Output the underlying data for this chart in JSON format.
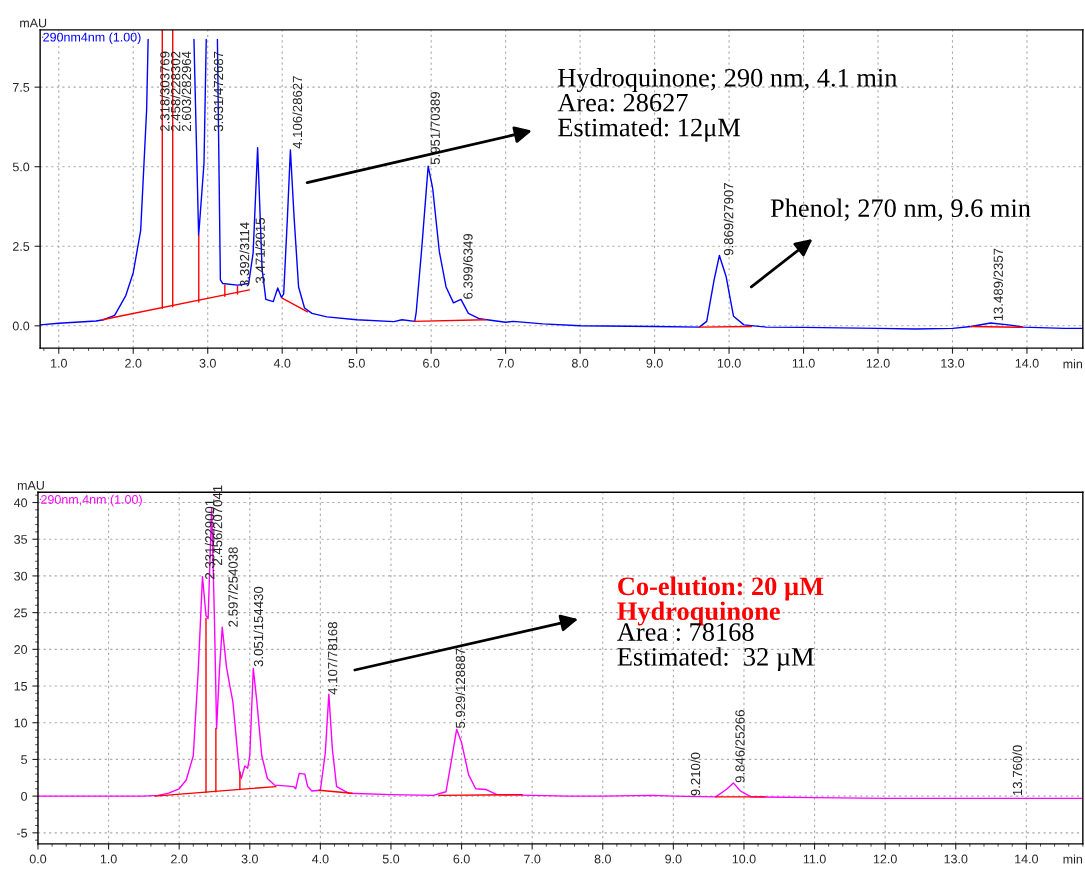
{
  "chart_data": [
    {
      "type": "line",
      "xlabel": "min",
      "ylabel": "mAU",
      "xlim": [
        0.75,
        14.75
      ],
      "ylim": [
        -0.7,
        9.3
      ],
      "xticks": [
        {
          "value": 1,
          "label": "1.0"
        },
        {
          "value": 2,
          "label": "2.0"
        },
        {
          "value": 3,
          "label": "3.0"
        },
        {
          "value": 4,
          "label": "4.0"
        },
        {
          "value": 5,
          "label": "5.0"
        },
        {
          "value": 6,
          "label": "6.0"
        },
        {
          "value": 7,
          "label": "7.0"
        },
        {
          "value": 8,
          "label": "8.0"
        },
        {
          "value": 9,
          "label": "9.0"
        },
        {
          "value": 10,
          "label": "10.0"
        },
        {
          "value": 11,
          "label": "11.0"
        },
        {
          "value": 12,
          "label": "12.0"
        },
        {
          "value": 13,
          "label": "13.0"
        },
        {
          "value": 14,
          "label": "14.0"
        }
      ],
      "yticks": [
        {
          "value": 0,
          "label": "0.0"
        },
        2.5,
        {
          "value": 5,
          "label": "5.0"
        },
        7.5
      ],
      "grid": true,
      "legend": "top left",
      "series": [
        {
          "name": "290nm4nm (1.00)",
          "color": "#0000ff",
          "x": [
            0.75,
            1.0,
            1.5,
            1.6,
            1.75,
            1.9,
            2.0,
            2.1,
            2.18,
            2.2,
            2.5,
            2.815,
            2.878,
            2.95,
            2.98,
            3.05,
            3.13,
            3.17,
            3.2,
            3.4,
            3.55,
            3.61,
            3.67,
            3.73,
            3.78,
            3.88,
            3.94,
            3.99,
            4.02,
            4.07,
            4.11,
            4.16,
            4.22,
            4.3,
            4.4,
            4.6,
            5.0,
            5.5,
            5.61,
            5.78,
            5.8,
            5.87,
            5.96,
            6.02,
            6.11,
            6.2,
            6.3,
            6.4,
            6.5,
            6.65,
            7.0,
            7.1,
            7.5,
            8.0,
            9.0,
            9.6,
            9.7,
            9.8,
            9.87,
            9.96,
            10.06,
            10.2,
            10.5,
            11.0,
            12.0,
            12.5,
            13.0,
            13.25,
            13.51,
            13.75,
            13.95,
            14.5,
            14.75
          ],
          "values": [
            0.03,
            0.08,
            0.15,
            0.19,
            0.33,
            0.95,
            1.67,
            3.0,
            6.8,
            9.0,
            null,
            9.0,
            2.83,
            5.1,
            9.0,
            null,
            9.0,
            1.44,
            1.33,
            1.28,
            1.33,
            2.3,
            5.6,
            1.78,
            0.83,
            0.76,
            1.19,
            0.89,
            1.0,
            3.4,
            5.53,
            3.4,
            1.22,
            0.56,
            0.39,
            0.28,
            0.19,
            0.13,
            0.19,
            0.14,
            0.44,
            2.33,
            5.02,
            4.33,
            2.33,
            1.22,
            0.72,
            0.83,
            0.39,
            0.22,
            0.11,
            0.14,
            0.06,
            0.0,
            -0.02,
            -0.04,
            0.14,
            1.45,
            2.21,
            1.55,
            0.3,
            0.03,
            -0.04,
            -0.05,
            -0.08,
            -0.1,
            -0.08,
            -0.02,
            0.09,
            0.03,
            -0.04,
            -0.08,
            -0.08
          ]
        },
        {
          "color": "#ff0000",
          "x": [
            1.585,
            3.56
          ],
          "values": [
            0.19,
            1.13
          ]
        },
        {
          "color": "#ff0000",
          "x": [
            4.0,
            4.34
          ],
          "values": [
            0.87,
            0.44
          ]
        },
        {
          "color": "#ff0000",
          "x": [
            5.77,
            6.73
          ],
          "values": [
            0.14,
            0.19
          ]
        },
        {
          "color": "#ff0000",
          "x": [
            9.6,
            10.3
          ],
          "values": [
            -0.04,
            -0.02
          ]
        },
        {
          "color": "#ff0000",
          "x": [
            13.25,
            13.95
          ],
          "values": [
            -0.02,
            -0.05
          ]
        },
        {
          "color": "#ff0000",
          "x": [
            2.39,
            2.39
          ],
          "values": [
            0.55,
            9.3
          ]
        },
        {
          "color": "#ff0000",
          "x": [
            2.53,
            2.53
          ],
          "values": [
            0.6,
            9.3
          ]
        },
        {
          "color": "#ff0000",
          "x": [
            2.88,
            2.88
          ],
          "values": [
            0.75,
            2.83
          ]
        },
        {
          "color": "#ff0000",
          "x": [
            3.23,
            3.23
          ],
          "values": [
            0.93,
            1.28
          ]
        },
        {
          "color": "#ff0000",
          "x": [
            3.4,
            3.4
          ],
          "values": [
            1.0,
            1.25
          ]
        }
      ],
      "annotations": [
        "Hydroquinone; 290 nm, 4.1 min\nArea: 28627\nEstimated: 12μM",
        "Phenol; 270 nm, 9.6 min",
        "2.318/303769",
        "2.458/228302",
        "2.603/282964",
        "3.031/472687",
        "3.392/3114",
        "3.471/2015",
        "4.106/28627",
        "5.951/70389",
        "6.399/6349",
        "9.869/27907",
        "13.489/2357"
      ]
    },
    {
      "type": "line",
      "xlabel": "min",
      "ylabel": "mAU",
      "xlim": [
        0,
        14.8
      ],
      "ylim": [
        -6.5,
        41.4
      ],
      "xticks": [
        {
          "value": 0,
          "label": "0.0"
        },
        {
          "value": 1,
          "label": "1.0"
        },
        {
          "value": 2,
          "label": "2.0"
        },
        {
          "value": 3,
          "label": "3.0"
        },
        {
          "value": 4,
          "label": "4.0"
        },
        {
          "value": 5,
          "label": "5.0"
        },
        {
          "value": 6,
          "label": "6.0"
        },
        {
          "value": 7,
          "label": "7.0"
        },
        {
          "value": 8,
          "label": "8.0"
        },
        {
          "value": 9,
          "label": "9.0"
        },
        {
          "value": 10,
          "label": "10.0"
        },
        {
          "value": 11,
          "label": "11.0"
        },
        {
          "value": 12,
          "label": "12.0"
        },
        {
          "value": 13,
          "label": "13.0"
        },
        {
          "value": 14,
          "label": "14.0"
        }
      ],
      "yticks": [
        -5,
        0,
        5,
        10,
        15,
        20,
        25,
        30,
        35,
        40
      ],
      "grid": true,
      "legend": "top left",
      "series": [
        {
          "name": "290nm,4nm (1.00)",
          "color": "#ff00ff",
          "x": [
            0.0,
            1.5,
            1.7,
            1.85,
            2.0,
            2.1,
            2.2,
            2.27,
            2.33,
            2.38,
            2.41,
            2.46,
            2.5,
            2.53,
            2.57,
            2.61,
            2.67,
            2.72,
            2.76,
            2.85,
            2.88,
            2.93,
            2.97,
            3.0,
            3.05,
            3.1,
            3.17,
            3.25,
            3.35,
            3.5,
            3.62,
            3.65,
            3.7,
            3.78,
            3.82,
            3.88,
            4.0,
            4.07,
            4.12,
            4.17,
            4.23,
            4.4,
            5.0,
            5.6,
            5.78,
            5.85,
            5.93,
            6.0,
            6.1,
            6.2,
            6.35,
            6.5,
            7.0,
            7.5,
            8.0,
            8.7,
            9.0,
            9.6,
            9.75,
            9.85,
            9.95,
            10.1,
            11.0,
            12.0,
            13.0,
            14.0,
            14.8
          ],
          "values": [
            0,
            0,
            0.1,
            0.4,
            1.0,
            2.2,
            5.5,
            17.1,
            29.9,
            24.6,
            24.2,
            39.3,
            24,
            9.2,
            17.1,
            23,
            17.6,
            14.9,
            12.9,
            3.6,
            2.4,
            4.1,
            3.8,
            5.5,
            17.4,
            12.9,
            5.5,
            2.4,
            1.5,
            1.4,
            1.3,
            1.0,
            3.1,
            3.0,
            1.3,
            0.7,
            0.8,
            5.9,
            13.9,
            6.4,
            1.3,
            0.4,
            0.2,
            0.1,
            0.6,
            4.5,
            9.1,
            7.3,
            2.9,
            1.0,
            0.9,
            0.2,
            0.1,
            0,
            0,
            0.1,
            0,
            -0.1,
            0.9,
            1.8,
            0.7,
            -0.1,
            -0.2,
            -0.3,
            -0.3,
            -0.3,
            -0.3
          ]
        },
        {
          "color": "#ff0000",
          "x": [
            1.66,
            3.37
          ],
          "values": [
            0,
            1.3
          ]
        },
        {
          "color": "#ff0000",
          "x": [
            3.98,
            4.45
          ],
          "values": [
            0.8,
            0.4
          ]
        },
        {
          "color": "#ff0000",
          "x": [
            5.68,
            6.86
          ],
          "values": [
            0.1,
            0.2
          ]
        },
        {
          "color": "#ff0000",
          "x": [
            9.6,
            10.3
          ],
          "values": [
            -0.1,
            -0.1
          ]
        },
        {
          "color": "#ff0000",
          "x": [
            2.38,
            2.38
          ],
          "values": [
            0.5,
            24.2
          ]
        },
        {
          "color": "#ff0000",
          "x": [
            2.52,
            2.52
          ],
          "values": [
            0.6,
            9.2
          ]
        },
        {
          "color": "#ff0000",
          "x": [
            2.86,
            2.86
          ],
          "values": [
            0.9,
            3.3
          ]
        }
      ],
      "annotations": [
        "Co-elution: 20 µM\nHydroquinone",
        "Area : 78168\nEstimated:  32 µM",
        "2.331/229001",
        "2.456/207041",
        "2.597/254038",
        "3.051/154430",
        "4.107/78168",
        "5.929/128887",
        "9.210/0",
        "9.846/25266",
        "13.760/0"
      ]
    }
  ]
}
